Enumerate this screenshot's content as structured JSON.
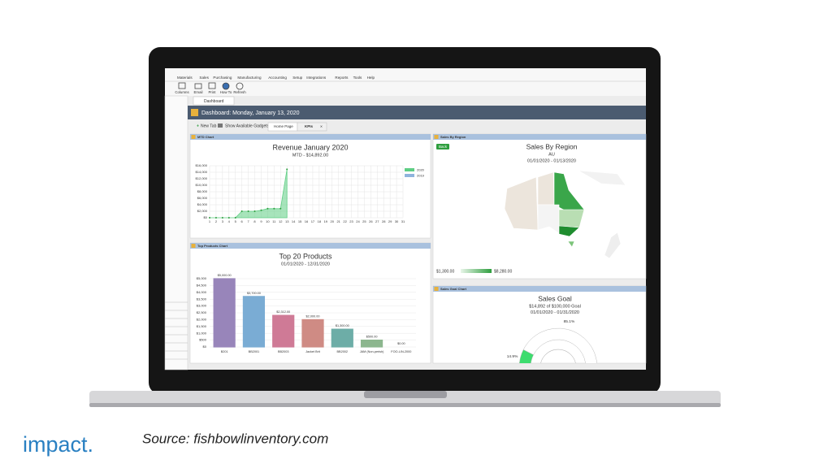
{
  "app": {
    "menu": [
      "Materials",
      "Sales",
      "Purchasing",
      "Manufacturing",
      "Accounting",
      "Setup",
      "Integrations",
      "Reports",
      "Tools",
      "Help"
    ],
    "toolbar": [
      "Columns",
      "Email",
      "Print",
      "How To",
      "Refresh"
    ],
    "tab": "Dashboard"
  },
  "dashboard": {
    "title": "Dashboard: Monday, January 13, 2020",
    "actions": [
      "New Tab",
      "Show Available Gadgets"
    ],
    "tabs": [
      "Home Page",
      "KPIs"
    ]
  },
  "panels": [
    "MTD Chart",
    "Top Products Chart",
    "Sales By Region",
    "Sales Goal Chart"
  ],
  "chart_data": [
    {
      "type": "line",
      "title": "Revenue January 2020",
      "subtitle": "MTD - $14,892.00",
      "x": [
        1,
        2,
        3,
        4,
        5,
        6,
        7,
        8,
        9,
        10,
        11,
        12,
        13,
        14,
        15,
        16,
        17,
        18,
        19,
        20,
        21,
        22,
        23,
        24,
        25,
        26,
        27,
        28,
        29,
        30,
        31
      ],
      "xlim": [
        1,
        31
      ],
      "xticks": [
        1,
        2,
        3,
        4,
        5,
        6,
        7,
        8,
        9,
        10,
        11,
        12,
        13,
        14,
        15,
        16,
        17,
        18,
        19,
        20,
        21,
        22,
        23,
        24,
        25,
        26,
        27,
        28,
        29,
        30,
        31
      ],
      "ylim": [
        0,
        16000
      ],
      "yticks": [
        {
          "value": 0,
          "label": "$0"
        },
        {
          "value": 2000,
          "label": "$2,000"
        },
        {
          "value": 4000,
          "label": "$4,000"
        },
        {
          "value": 6000,
          "label": "$6,000"
        },
        {
          "value": 8000,
          "label": "$8,000"
        },
        {
          "value": 10000,
          "label": "$10,000"
        },
        {
          "value": 12000,
          "label": "$12,000"
        },
        {
          "value": 14000,
          "label": "$14,000"
        },
        {
          "value": 16000,
          "label": "$16,000"
        }
      ],
      "grid": true,
      "series": [
        {
          "name": "2020",
          "color": "#5fce84",
          "values": [
            0,
            0,
            0,
            0,
            0,
            2000,
            2000,
            2000,
            2300,
            2800,
            2800,
            2800,
            14892,
            null,
            null,
            null,
            null,
            null,
            null,
            null,
            null,
            null,
            null,
            null,
            null,
            null,
            null,
            null,
            null,
            null,
            null
          ]
        },
        {
          "name": "2019",
          "color": "#8fb4dd",
          "values": [
            null,
            null,
            null,
            null,
            null,
            null,
            null,
            null,
            null,
            null,
            null,
            null,
            null,
            null,
            null,
            null,
            null,
            null,
            null,
            null,
            null,
            null,
            null,
            null,
            null,
            null,
            null,
            null,
            null,
            null,
            null
          ]
        }
      ]
    },
    {
      "type": "bar",
      "title": "Top 20 Products",
      "subtitle": "01/01/2020 - 12/31/2020",
      "categories": [
        "B201",
        "BB2001",
        "BB2003",
        "Jacket Brit",
        "BB2002",
        "JAM (Non-perish)",
        "FOO-LIN-2000"
      ],
      "values": [
        5000,
        3700,
        2312,
        2000,
        1300,
        500,
        0
      ],
      "value_labels": [
        "$5,000.00",
        "$3,700.00",
        "$2,312.00",
        "$2,000.00",
        "$1,300.00",
        "$500.00",
        "$0.00"
      ],
      "colors": [
        "#b39ddb",
        "#90caf9",
        "#f48fb1",
        "#f4a39b",
        "#80cbc4",
        "#a5d6a7",
        "#cfd8dc"
      ],
      "ylim": [
        0,
        5000
      ],
      "yticks": [
        {
          "value": 0,
          "label": "$0"
        },
        {
          "value": 500,
          "label": "$500"
        },
        {
          "value": 1000,
          "label": "$1,000"
        },
        {
          "value": 1500,
          "label": "$1,500"
        },
        {
          "value": 2000,
          "label": "$2,000"
        },
        {
          "value": 2500,
          "label": "$2,500"
        },
        {
          "value": 3000,
          "label": "$3,000"
        },
        {
          "value": 3500,
          "label": "$3,500"
        },
        {
          "value": 4000,
          "label": "$4,000"
        },
        {
          "value": 4500,
          "label": "$4,500"
        },
        {
          "value": 5000,
          "label": "$5,000"
        }
      ],
      "grid": true
    },
    {
      "type": "map",
      "title": "Sales By Region",
      "subtitle": "AU",
      "date_range": "01/01/2020 - 01/13/2020",
      "button": "Back",
      "scale_ticks": [
        {
          "value": 1300,
          "label": "$1,300.00"
        },
        {
          "value": 8280,
          "label": "$8,280.00"
        }
      ],
      "scale_colors": [
        "#e8f5e9",
        "#2e9e3e"
      ]
    },
    {
      "type": "gauge",
      "title": "Sales Goal",
      "subtitle": "$14,892 of $100,000 Goal",
      "date_range": "01/01/2020 - 01/31/2020",
      "values": [
        14.9,
        85.1
      ],
      "value_labels": [
        "14.9%",
        "85.1%"
      ],
      "colors": [
        "#3ddc6e",
        "#ffffff"
      ]
    }
  ],
  "footer": {
    "logo": "impact.",
    "source": "Source: fishbowlinventory.com"
  }
}
